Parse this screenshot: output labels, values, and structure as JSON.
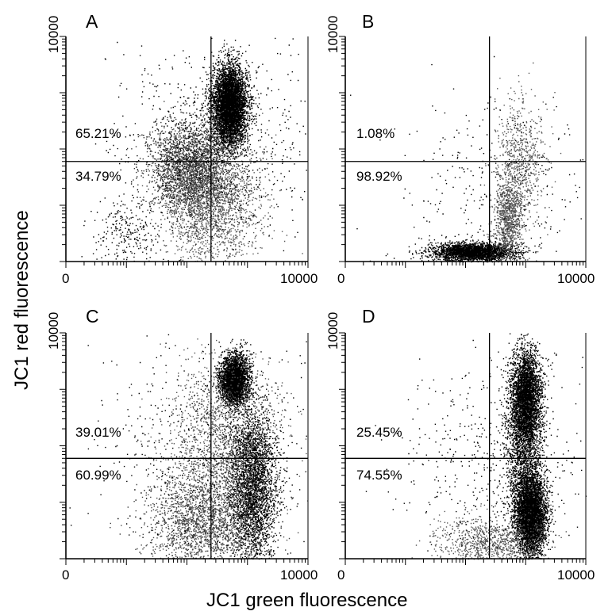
{
  "chart_data": {
    "type": "scatter",
    "xlabel": "JC1 green fluorescence",
    "ylabel": "JC1 red fluorescence",
    "axis": {
      "x_min_label": "0",
      "x_max_label": "10000",
      "y_max_label": "10000",
      "scale": "log",
      "xlim": [
        1,
        10000
      ],
      "ylim": [
        1,
        10000
      ]
    },
    "grid": false,
    "panels": [
      {
        "label": "A",
        "upper_pct": "65.21%",
        "lower_pct": "34.79%",
        "gate": {
          "x": 250,
          "y": 60
        },
        "populations": [
          {
            "cx": 500,
            "cy": 600,
            "sx": 0.14,
            "sy": 0.35,
            "n": 5200,
            "color": "#000000"
          },
          {
            "cx": 110,
            "cy": 45,
            "sx": 0.35,
            "sy": 0.4,
            "n": 2600,
            "color": "#333333"
          },
          {
            "cx": 250,
            "cy": 10,
            "sx": 0.4,
            "sy": 0.55,
            "n": 1800,
            "color": "#555555"
          },
          {
            "cx": 10,
            "cy": 3,
            "sx": 0.3,
            "sy": 0.3,
            "n": 250,
            "color": "#000000"
          },
          {
            "cx": 300,
            "cy": 120,
            "sx": 0.8,
            "sy": 0.9,
            "n": 900,
            "color": "#000000"
          }
        ]
      },
      {
        "label": "B",
        "upper_pct": "1.08%",
        "lower_pct": "98.92%",
        "gate": {
          "x": 250,
          "y": 60
        },
        "populations": [
          {
            "cx": 130,
            "cy": 1.5,
            "sx": 0.35,
            "sy": 0.08,
            "n": 2600,
            "color": "#000000"
          },
          {
            "cx": 500,
            "cy": 6,
            "sx": 0.12,
            "sy": 0.35,
            "n": 900,
            "color": "#555555"
          },
          {
            "cx": 800,
            "cy": 60,
            "sx": 0.2,
            "sy": 0.55,
            "n": 700,
            "color": "#555555"
          },
          {
            "cx": 300,
            "cy": 20,
            "sx": 0.8,
            "sy": 0.8,
            "n": 300,
            "color": "#000000"
          }
        ]
      },
      {
        "label": "C",
        "upper_pct": "39.01%",
        "lower_pct": "60.99%",
        "gate": {
          "x": 250,
          "y": 60
        },
        "populations": [
          {
            "cx": 600,
            "cy": 1500,
            "sx": 0.12,
            "sy": 0.22,
            "n": 3000,
            "color": "#000000"
          },
          {
            "cx": 1200,
            "cy": 20,
            "sx": 0.2,
            "sy": 0.7,
            "n": 3200,
            "color": "#000000"
          },
          {
            "cx": 180,
            "cy": 5,
            "sx": 0.45,
            "sy": 0.5,
            "n": 2200,
            "color": "#444444"
          },
          {
            "cx": 400,
            "cy": 150,
            "sx": 0.45,
            "sy": 0.7,
            "n": 1400,
            "color": "#555555"
          },
          {
            "cx": 200,
            "cy": 100,
            "sx": 0.9,
            "sy": 1.0,
            "n": 600,
            "color": "#000000"
          }
        ]
      },
      {
        "label": "D",
        "upper_pct": "25.45%",
        "lower_pct": "74.55%",
        "gate": {
          "x": 250,
          "y": 60
        },
        "populations": [
          {
            "cx": 1000,
            "cy": 700,
            "sx": 0.13,
            "sy": 0.45,
            "n": 3400,
            "color": "#000000"
          },
          {
            "cx": 1200,
            "cy": 6,
            "sx": 0.13,
            "sy": 0.35,
            "n": 4200,
            "color": "#000000"
          },
          {
            "cx": 900,
            "cy": 60,
            "sx": 0.15,
            "sy": 0.7,
            "n": 1500,
            "color": "#000000"
          },
          {
            "cx": 250,
            "cy": 2,
            "sx": 0.45,
            "sy": 0.25,
            "n": 900,
            "color": "#555555"
          },
          {
            "cx": 300,
            "cy": 60,
            "sx": 0.8,
            "sy": 0.9,
            "n": 500,
            "color": "#000000"
          }
        ]
      }
    ]
  }
}
